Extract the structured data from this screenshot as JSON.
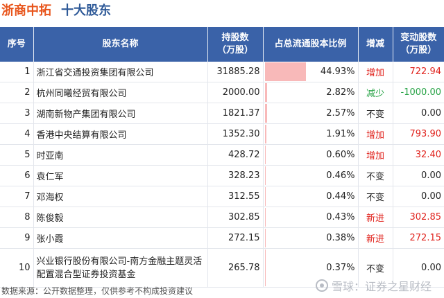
{
  "header": {
    "company": "浙商中拓",
    "subtitle": "十大股东"
  },
  "table": {
    "columns": [
      "序号",
      "股东名称",
      "持股数\n（万股）",
      "占总流通股本比例",
      "增减",
      "变动股数\n（万股）"
    ],
    "rows": [
      {
        "rank": "1",
        "name": "浙江省交通投资集团有限公司",
        "shares": "31885.28",
        "ratio": "44.93%",
        "ratio_value": 44.93,
        "change": "增加",
        "change_type": "up",
        "delta": "722.94"
      },
      {
        "rank": "2",
        "name": "杭州同曦经贸有限公司",
        "shares": "2000.00",
        "ratio": "2.82%",
        "ratio_value": 2.82,
        "change": "减少",
        "change_type": "down",
        "delta": "-1000.00"
      },
      {
        "rank": "3",
        "name": "湖南新物产集团有限公司",
        "shares": "1821.37",
        "ratio": "2.57%",
        "ratio_value": 2.57,
        "change": "不变",
        "change_type": "same",
        "delta": "0.00"
      },
      {
        "rank": "4",
        "name": "香港中央结算有限公司",
        "shares": "1352.30",
        "ratio": "1.91%",
        "ratio_value": 1.91,
        "change": "增加",
        "change_type": "up",
        "delta": "793.90"
      },
      {
        "rank": "5",
        "name": "时亚南",
        "shares": "428.72",
        "ratio": "0.60%",
        "ratio_value": 0.6,
        "change": "增加",
        "change_type": "up",
        "delta": "32.40"
      },
      {
        "rank": "6",
        "name": "袁仁军",
        "shares": "328.23",
        "ratio": "0.46%",
        "ratio_value": 0.46,
        "change": "不变",
        "change_type": "same",
        "delta": "0.00"
      },
      {
        "rank": "7",
        "name": "邓海权",
        "shares": "312.55",
        "ratio": "0.44%",
        "ratio_value": 0.44,
        "change": "不变",
        "change_type": "same",
        "delta": "0.00"
      },
      {
        "rank": "8",
        "name": "陈俊毅",
        "shares": "302.85",
        "ratio": "0.43%",
        "ratio_value": 0.43,
        "change": "新进",
        "change_type": "up",
        "delta": "302.85"
      },
      {
        "rank": "9",
        "name": "张小霞",
        "shares": "272.15",
        "ratio": "0.38%",
        "ratio_value": 0.38,
        "change": "新进",
        "change_type": "up",
        "delta": "272.15"
      },
      {
        "rank": "10",
        "name": "兴业银行股份有限公司-南方金融主题灵活配置混合型证券投资基金",
        "shares": "265.78",
        "ratio": "0.37%",
        "ratio_value": 0.37,
        "change": "不变",
        "change_type": "same",
        "delta": "0.00"
      }
    ]
  },
  "footer": {
    "source": "数据来源：公开数据整理，仅供参考不构成投资建议"
  },
  "watermark": {
    "text": "雪球：证券之星财经"
  }
}
